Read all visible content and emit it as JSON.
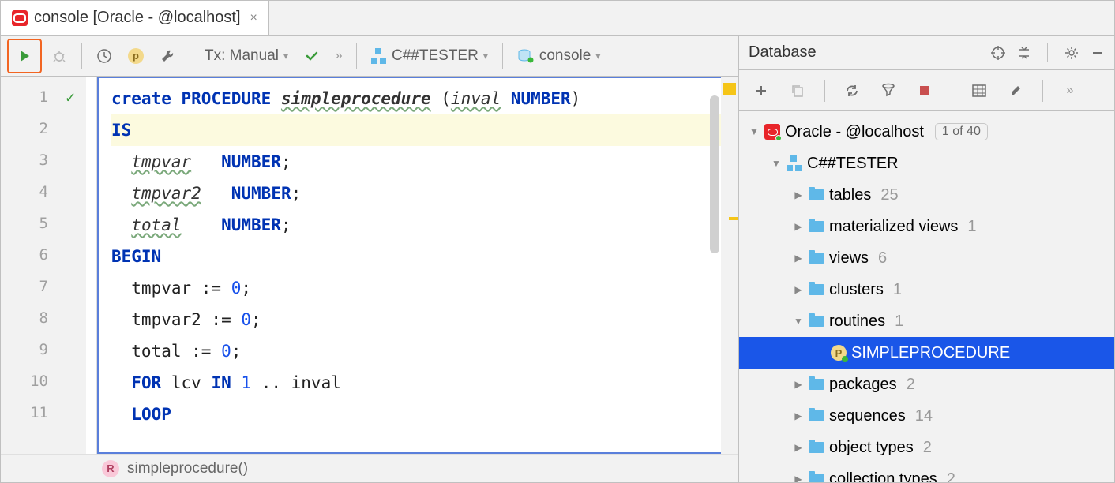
{
  "tab": {
    "title": "console [Oracle - @localhost]"
  },
  "toolbar": {
    "tx_label": "Tx: Manual",
    "schema_label": "C##TESTER",
    "console_label": "console"
  },
  "editor": {
    "lines": [
      {
        "n": 1,
        "html": "<span class='kw'>create</span> <span class='kw'>PROCEDURE</span> <span class='kwi ident'>simpleprocedure</span> (<span class='ident'>inval</span> <span class='kw'>NUMBER</span>)"
      },
      {
        "n": 2,
        "html": "<span class='kw'>IS</span>",
        "hl": true
      },
      {
        "n": 3,
        "html": "  <span class='ident'>tmpvar</span>   <span class='kw'>NUMBER</span>;"
      },
      {
        "n": 4,
        "html": "  <span class='ident'>tmpvar2</span>   <span class='kw'>NUMBER</span>;"
      },
      {
        "n": 5,
        "html": "  <span class='ident'>total</span>    <span class='kw'>NUMBER</span>;"
      },
      {
        "n": 6,
        "html": "<span class='kw'>BEGIN</span>"
      },
      {
        "n": 7,
        "html": "  tmpvar := <span class='num'>0</span>;"
      },
      {
        "n": 8,
        "html": "  tmpvar2 := <span class='num'>0</span>;"
      },
      {
        "n": 9,
        "html": "  total := <span class='num'>0</span>;"
      },
      {
        "n": 10,
        "html": "  <span class='kw'>FOR</span> lcv <span class='kw'>IN</span> <span class='num'>1</span> .. inval"
      },
      {
        "n": 11,
        "html": "  <span class='kw'>LOOP</span>"
      }
    ]
  },
  "status": {
    "proc": "simpleprocedure()"
  },
  "db_panel": {
    "title": "Database"
  },
  "tree": {
    "datasource": "Oracle - @localhost",
    "datasource_badge": "1 of 40",
    "schema": "C##TESTER",
    "folders": [
      {
        "label": "tables",
        "count": "25"
      },
      {
        "label": "materialized views",
        "count": "1"
      },
      {
        "label": "views",
        "count": "6"
      },
      {
        "label": "clusters",
        "count": "1"
      },
      {
        "label": "routines",
        "count": "1",
        "expanded": true,
        "children": [
          {
            "label": "SIMPLEPROCEDURE",
            "selected": true
          }
        ]
      },
      {
        "label": "packages",
        "count": "2"
      },
      {
        "label": "sequences",
        "count": "14"
      },
      {
        "label": "object types",
        "count": "2"
      },
      {
        "label": "collection types",
        "count": "2"
      }
    ]
  },
  "colors": {
    "keyword": "#0033b3",
    "number": "#1750eb",
    "selection": "#1a56e8",
    "oracle": "#e8252a",
    "folder": "#5fb8e8",
    "run_border": "#f26522",
    "hl_line": "#fcfadf"
  }
}
